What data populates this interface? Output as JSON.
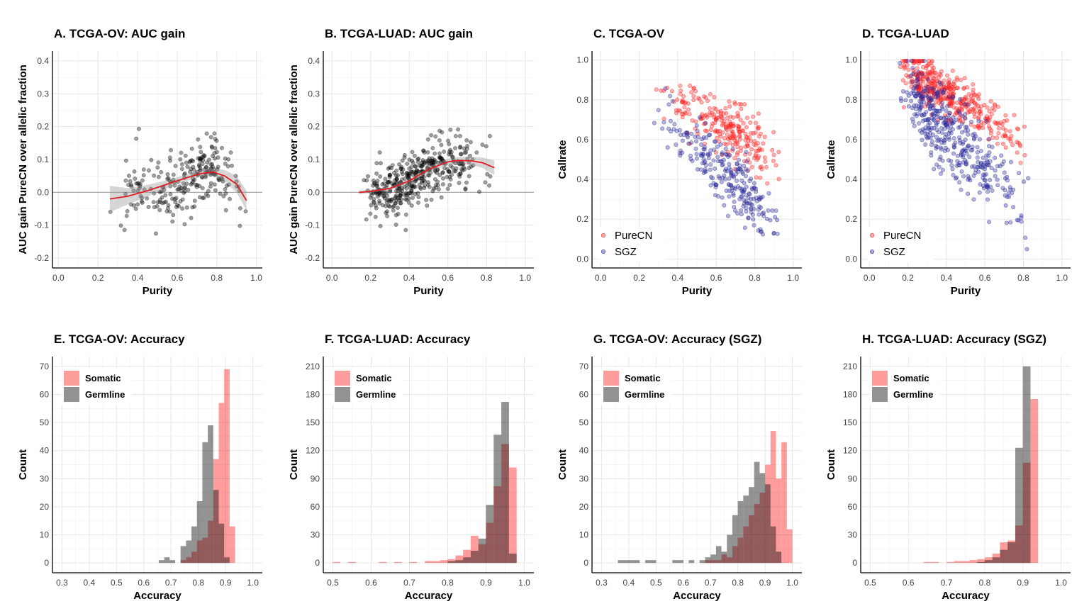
{
  "chart_data": [
    {
      "id": "A",
      "type": "scatter",
      "title": "A. TCGA-OV: AUC gain",
      "xlabel": "Purity",
      "ylabel": "AUC gain PureCN over allelic fraction",
      "xlim": [
        -0.03,
        1.03
      ],
      "ylim": [
        -0.23,
        0.43
      ],
      "xticks": [
        0,
        0.2,
        0.4,
        0.6,
        0.8,
        1.0
      ],
      "xtick_labels": [
        "0.0",
        "0.2",
        "0.4",
        "0.6",
        "0.8",
        "1.0"
      ],
      "yticks": [
        -0.2,
        -0.1,
        0,
        0.1,
        0.2,
        0.3,
        0.4
      ],
      "ytick_labels": [
        "-0.2",
        "-0.1",
        "0.0",
        "0.1",
        "0.2",
        "0.3",
        "0.4"
      ],
      "hline": 0,
      "point_color": "#000000",
      "points": {
        "n": 250,
        "x_range": [
          0.25,
          0.95
        ],
        "x_mode": 0.76,
        "sd": 0.055,
        "seed": 11
      },
      "smooth": {
        "color": "#e41a1c",
        "x": [
          0.26,
          0.35,
          0.45,
          0.55,
          0.65,
          0.72,
          0.78,
          0.84,
          0.9,
          0.95
        ],
        "y": [
          -0.02,
          -0.012,
          0.005,
          0.025,
          0.045,
          0.057,
          0.062,
          0.05,
          0.025,
          -0.025
        ],
        "band": [
          0.04,
          0.025,
          0.018,
          0.012,
          0.01,
          0.01,
          0.012,
          0.018,
          0.025,
          0.03
        ]
      }
    },
    {
      "id": "B",
      "type": "scatter",
      "title": "B. TCGA-LUAD: AUC gain",
      "xlabel": "Purity",
      "ylabel": "AUC gain PureCN over allelic fraction",
      "xlim": [
        -0.045,
        1.045
      ],
      "ylim": [
        -0.23,
        0.43
      ],
      "xticks": [
        0,
        0.2,
        0.4,
        0.6,
        0.8,
        1.0
      ],
      "xtick_labels": [
        "0.0",
        "0.2",
        "0.4",
        "0.6",
        "0.8",
        "1.0"
      ],
      "yticks": [
        -0.2,
        -0.1,
        0,
        0.1,
        0.2,
        0.3,
        0.4
      ],
      "ytick_labels": [
        "-0.2",
        "-0.1",
        "0.0",
        "0.1",
        "0.2",
        "0.3",
        "0.4"
      ],
      "hline": 0,
      "point_color": "#000000",
      "points": {
        "n": 420,
        "x_range": [
          0.14,
          0.84
        ],
        "x_mode": 0.35,
        "sd": 0.04,
        "seed": 23
      },
      "smooth": {
        "color": "#e41a1c",
        "x": [
          0.14,
          0.2,
          0.3,
          0.4,
          0.5,
          0.6,
          0.66,
          0.72,
          0.78,
          0.84
        ],
        "y": [
          0.0,
          0.003,
          0.012,
          0.035,
          0.07,
          0.093,
          0.097,
          0.096,
          0.09,
          0.075
        ],
        "band": [
          0.006,
          0.005,
          0.005,
          0.006,
          0.008,
          0.01,
          0.011,
          0.012,
          0.016,
          0.022
        ]
      }
    },
    {
      "id": "C",
      "type": "scatter",
      "title": "C. TCGA-OV",
      "xlabel": "Purity",
      "ylabel": "Callrate",
      "xlim": [
        -0.045,
        1.045
      ],
      "ylim": [
        -0.045,
        1.045
      ],
      "xticks": [
        0,
        0.2,
        0.4,
        0.6,
        0.8,
        1.0
      ],
      "xtick_labels": [
        "0.0",
        "0.2",
        "0.4",
        "0.6",
        "0.8",
        "1.0"
      ],
      "yticks": [
        0,
        0.2,
        0.4,
        0.6,
        0.8,
        1.0
      ],
      "ytick_labels": [
        "0.0",
        "0.2",
        "0.4",
        "0.6",
        "0.8",
        "1.0"
      ],
      "legend": {
        "position": "bottom-left",
        "entries": [
          "PureCN",
          "SGZ"
        ]
      },
      "series": [
        {
          "name": "PureCN",
          "color": "#ff2020",
          "n": 250,
          "x_range": [
            0.26,
            0.95
          ],
          "x_mode": 0.75,
          "a": 1.0,
          "b": -0.52,
          "sd": 0.07,
          "seed": 5
        },
        {
          "name": "SGZ",
          "color": "#2a2a9a",
          "n": 250,
          "x_range": [
            0.26,
            0.95
          ],
          "x_mode": 0.75,
          "a": 1.0,
          "b": -0.9,
          "sd": 0.08,
          "seed": 9
        }
      ]
    },
    {
      "id": "D",
      "type": "scatter",
      "title": "D. TCGA-LUAD",
      "xlabel": "Purity",
      "ylabel": "Callrate",
      "xlim": [
        -0.045,
        1.045
      ],
      "ylim": [
        -0.045,
        1.045
      ],
      "xticks": [
        0,
        0.2,
        0.4,
        0.6,
        0.8,
        1.0
      ],
      "xtick_labels": [
        "0.0",
        "0.2",
        "0.4",
        "0.6",
        "0.8",
        "1.0"
      ],
      "yticks": [
        0,
        0.2,
        0.4,
        0.6,
        0.8,
        1.0
      ],
      "ytick_labels": [
        "0.0",
        "0.2",
        "0.4",
        "0.6",
        "0.8",
        "1.0"
      ],
      "legend": {
        "position": "bottom-left",
        "entries": [
          "PureCN",
          "SGZ"
        ]
      },
      "series": [
        {
          "name": "PureCN",
          "color": "#ff2020",
          "n": 400,
          "x_range": [
            0.14,
            0.85
          ],
          "x_mode": 0.3,
          "a": 1.08,
          "b": -0.62,
          "sd": 0.06,
          "seed": 31
        },
        {
          "name": "SGZ",
          "color": "#2a2a9a",
          "n": 400,
          "x_range": [
            0.14,
            0.85
          ],
          "x_mode": 0.3,
          "a": 1.02,
          "b": -0.95,
          "sd": 0.1,
          "seed": 37
        }
      ]
    },
    {
      "id": "E",
      "type": "bar",
      "subtype": "histogram",
      "title": "E. TCGA-OV: Accuracy",
      "xlabel": "Accuracy",
      "ylabel": "Count",
      "xlim": [
        0.265,
        1.035
      ],
      "ylim": [
        -3.5,
        73.5
      ],
      "xticks": [
        0.3,
        0.4,
        0.5,
        0.6,
        0.7,
        0.8,
        0.9,
        1.0
      ],
      "xtick_labels": [
        "0.3",
        "0.4",
        "0.5",
        "0.6",
        "0.7",
        "0.8",
        "0.9",
        "1.0"
      ],
      "yticks": [
        0,
        10,
        20,
        30,
        40,
        50,
        60,
        70
      ],
      "ytick_labels": [
        "0",
        "10",
        "20",
        "30",
        "40",
        "50",
        "60",
        "70"
      ],
      "legend": {
        "position": "top-left",
        "entries": [
          "Somatic",
          "Germline"
        ]
      },
      "bin_start": 0.665,
      "bin_width": 0.02,
      "series": [
        {
          "name": "Somatic",
          "color": "#ff8c8c",
          "values": [
            0,
            0,
            0,
            0,
            1,
            2,
            4,
            8,
            9,
            15,
            37,
            57,
            69,
            13
          ]
        },
        {
          "name": "Germline",
          "color": "#808080",
          "values": [
            1,
            2,
            1,
            0,
            6,
            8,
            13,
            22,
            43,
            49,
            26,
            14,
            2,
            0
          ]
        }
      ]
    },
    {
      "id": "F",
      "type": "bar",
      "subtype": "histogram",
      "title": "F. TCGA-LUAD: Accuracy",
      "xlabel": "Accuracy",
      "ylabel": "Count",
      "xlim": [
        0.475,
        1.025
      ],
      "ylim": [
        -10.5,
        220.5
      ],
      "xticks": [
        0.5,
        0.6,
        0.7,
        0.8,
        0.9,
        1.0
      ],
      "xtick_labels": [
        "0.5",
        "0.6",
        "0.7",
        "0.8",
        "0.9",
        "1.0"
      ],
      "yticks": [
        0,
        30,
        60,
        90,
        120,
        150,
        180,
        210
      ],
      "ytick_labels": [
        "0",
        "30",
        "60",
        "90",
        "120",
        "150",
        "180",
        "210"
      ],
      "legend": {
        "position": "top-left",
        "entries": [
          "Somatic",
          "Germline"
        ]
      },
      "bin_start": 0.51,
      "bin_width": 0.02,
      "series": [
        {
          "name": "Somatic",
          "color": "#ff8c8c",
          "values": [
            1,
            0,
            1,
            0,
            0,
            0,
            1,
            0,
            1,
            0,
            1,
            0,
            2,
            2,
            3,
            4,
            8,
            14,
            29,
            20,
            43,
            82,
            127,
            102
          ]
        },
        {
          "name": "Germline",
          "color": "#808080",
          "values": [
            0,
            0,
            0,
            0,
            0,
            0,
            0,
            0,
            0,
            0,
            0,
            0,
            0,
            0,
            0,
            2,
            3,
            6,
            13,
            26,
            62,
            137,
            172,
            10
          ]
        }
      ]
    },
    {
      "id": "G",
      "type": "bar",
      "subtype": "histogram",
      "title": "G. TCGA-OV: Accuracy (SGZ)",
      "xlabel": "Accuracy",
      "ylabel": "Count",
      "xlim": [
        0.265,
        1.035
      ],
      "ylim": [
        -3.5,
        73.5
      ],
      "xticks": [
        0.3,
        0.4,
        0.5,
        0.6,
        0.7,
        0.8,
        0.9,
        1.0
      ],
      "xtick_labels": [
        "0.3",
        "0.4",
        "0.5",
        "0.6",
        "0.7",
        "0.8",
        "0.9",
        "1.0"
      ],
      "yticks": [
        0,
        10,
        20,
        30,
        40,
        50,
        60,
        70
      ],
      "ytick_labels": [
        "0",
        "10",
        "20",
        "30",
        "40",
        "50",
        "60",
        "70"
      ],
      "legend": {
        "position": "top-left",
        "entries": [
          "Somatic",
          "Germline"
        ]
      },
      "bin_start": 0.37,
      "bin_width": 0.02,
      "series": [
        {
          "name": "Somatic",
          "color": "#ff8c8c",
          "values": [
            0,
            0,
            0,
            0,
            0,
            0,
            0,
            0,
            0,
            0,
            0,
            0,
            0,
            0,
            0,
            0,
            1,
            1,
            1,
            3,
            2,
            6,
            9,
            13,
            17,
            21,
            25,
            35,
            47,
            30,
            43,
            12
          ]
        },
        {
          "name": "Germline",
          "color": "#808080",
          "values": [
            1,
            1,
            1,
            1,
            0,
            1,
            1,
            0,
            0,
            0,
            1,
            1,
            0,
            1,
            0,
            1,
            2,
            3,
            6,
            4,
            10,
            17,
            22,
            24,
            27,
            36,
            32,
            28,
            13,
            4,
            0,
            0
          ]
        }
      ]
    },
    {
      "id": "H",
      "type": "bar",
      "subtype": "histogram",
      "title": "H. TCGA-LUAD: Accuracy (SGZ)",
      "xlabel": "Accuracy",
      "ylabel": "Count",
      "xlim": [
        0.475,
        1.025
      ],
      "ylim": [
        -10.5,
        220.5
      ],
      "xticks": [
        0.5,
        0.6,
        0.7,
        0.8,
        0.9,
        1.0
      ],
      "xtick_labels": [
        "0.5",
        "0.6",
        "0.7",
        "0.8",
        "0.9",
        "1.0"
      ],
      "yticks": [
        0,
        30,
        60,
        90,
        120,
        150,
        180,
        210
      ],
      "ytick_labels": [
        "0",
        "30",
        "60",
        "90",
        "120",
        "150",
        "180",
        "210"
      ],
      "legend": {
        "position": "top-left",
        "entries": [
          "Somatic",
          "Germline"
        ]
      },
      "bin_start": 0.63,
      "bin_width": 0.02,
      "series": [
        {
          "name": "Somatic",
          "color": "#ff8c8c",
          "values": [
            0,
            1,
            1,
            0,
            1,
            2,
            2,
            3,
            4,
            6,
            10,
            22,
            24,
            40,
            107,
            175
          ]
        },
        {
          "name": "Germline",
          "color": "#808080",
          "values": [
            0,
            0,
            0,
            0,
            0,
            0,
            0,
            0,
            1,
            3,
            6,
            14,
            22,
            123,
            210,
            0
          ]
        }
      ]
    }
  ]
}
